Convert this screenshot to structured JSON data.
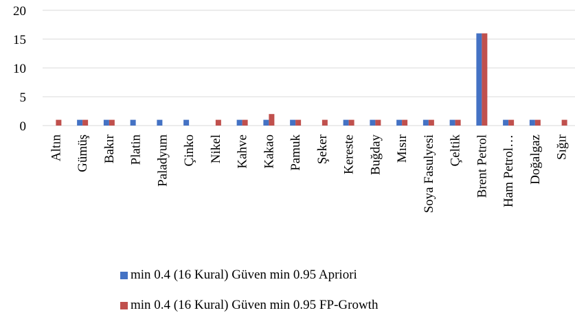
{
  "chart_data": {
    "type": "bar",
    "title": "",
    "xlabel": "",
    "ylabel": "",
    "ylim": [
      0,
      20
    ],
    "yticks": [
      0,
      5,
      10,
      15,
      20
    ],
    "grid": true,
    "legend_position": "bottom",
    "categories": [
      "Altın",
      "Gümüş",
      "Bakır",
      "Platin",
      "Paladyum",
      "Çinko",
      "Nikel",
      "Kahve",
      "Kakao",
      "Pamuk",
      "Şeker",
      "Kereste",
      "Buğday",
      "Mısır",
      "Soya Fasulyesi",
      "Çeltik",
      "Brent Petrol",
      "Ham Petrol…",
      "Doğalgaz",
      "Sığır"
    ],
    "series": [
      {
        "name": "min 0.4 (16 Kural) Güven min 0.95 Apriori",
        "color": "#4472C4",
        "values": [
          0,
          1,
          1,
          1,
          1,
          1,
          0,
          1,
          1,
          1,
          0,
          1,
          1,
          1,
          1,
          1,
          16,
          1,
          1,
          0
        ]
      },
      {
        "name": "min 0.4 (16 Kural) Güven min 0.95 FP-Growth",
        "color": "#C0504D",
        "values": [
          1,
          1,
          1,
          0,
          0,
          0,
          1,
          1,
          2,
          1,
          1,
          1,
          1,
          1,
          1,
          1,
          16,
          1,
          1,
          1
        ]
      }
    ]
  }
}
